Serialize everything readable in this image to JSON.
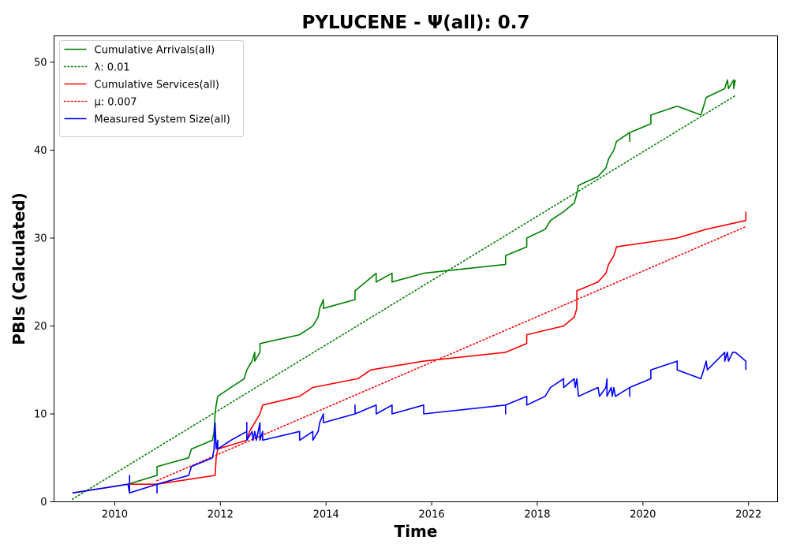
{
  "chart_data": {
    "type": "line",
    "title": "PYLUCENE -  Ψ(all): 0.7",
    "xlabel": "Time",
    "ylabel": "PBIs (Calculated)",
    "xlim": [
      2008.85,
      2022.55
    ],
    "ylim": [
      0,
      53
    ],
    "x_ticks": [
      2010,
      2012,
      2014,
      2016,
      2018,
      2020,
      2022
    ],
    "y_ticks": [
      0,
      10,
      20,
      30,
      40,
      50
    ],
    "grid": false,
    "legend_position": "top-left",
    "series": [
      {
        "name": "Cumulative Arrivals(all)",
        "color": "#008000",
        "style": "solid",
        "points": [
          [
            2009.2,
            1
          ],
          [
            2010.25,
            2
          ],
          [
            2010.8,
            3
          ],
          [
            2010.8,
            4
          ],
          [
            2011.4,
            5
          ],
          [
            2011.45,
            6
          ],
          [
            2011.85,
            7
          ],
          [
            2011.88,
            8
          ],
          [
            2011.9,
            10
          ],
          [
            2011.92,
            11
          ],
          [
            2011.95,
            12
          ],
          [
            2012.2,
            13
          ],
          [
            2012.45,
            14
          ],
          [
            2012.5,
            15
          ],
          [
            2012.6,
            16
          ],
          [
            2012.65,
            17
          ],
          [
            2012.65,
            16
          ],
          [
            2012.75,
            17
          ],
          [
            2012.75,
            18
          ],
          [
            2013.5,
            19
          ],
          [
            2013.75,
            20
          ],
          [
            2013.85,
            21
          ],
          [
            2013.88,
            22
          ],
          [
            2013.95,
            23
          ],
          [
            2013.95,
            22
          ],
          [
            2014.55,
            23
          ],
          [
            2014.55,
            24
          ],
          [
            2014.95,
            26
          ],
          [
            2014.95,
            25
          ],
          [
            2015.25,
            26
          ],
          [
            2015.25,
            25
          ],
          [
            2015.85,
            26
          ],
          [
            2017.4,
            27
          ],
          [
            2017.4,
            28
          ],
          [
            2017.8,
            29
          ],
          [
            2017.8,
            30
          ],
          [
            2018.15,
            31
          ],
          [
            2018.25,
            32
          ],
          [
            2018.5,
            33
          ],
          [
            2018.7,
            34
          ],
          [
            2018.75,
            35
          ],
          [
            2018.78,
            36
          ],
          [
            2019.15,
            37
          ],
          [
            2019.3,
            38
          ],
          [
            2019.35,
            39
          ],
          [
            2019.45,
            40
          ],
          [
            2019.5,
            41
          ],
          [
            2019.75,
            42
          ],
          [
            2019.75,
            41
          ],
          [
            2019.75,
            42
          ],
          [
            2020.15,
            43
          ],
          [
            2020.15,
            44
          ],
          [
            2020.65,
            45
          ],
          [
            2021.1,
            44
          ],
          [
            2021.15,
            45
          ],
          [
            2021.2,
            46
          ],
          [
            2021.55,
            47
          ],
          [
            2021.6,
            48
          ],
          [
            2021.62,
            47
          ],
          [
            2021.72,
            48
          ],
          [
            2021.72,
            47
          ],
          [
            2021.75,
            48
          ]
        ]
      },
      {
        "name": "λ: 0.01",
        "color": "#008000",
        "style": "dotted",
        "points": [
          [
            2009.2,
            0.3
          ],
          [
            2021.75,
            46.2
          ]
        ]
      },
      {
        "name": "Cumulative Services(all)",
        "color": "#ff0000",
        "style": "solid",
        "points": [
          [
            2009.2,
            1
          ],
          [
            2010.25,
            2
          ],
          [
            2010.8,
            2
          ],
          [
            2011.9,
            3
          ],
          [
            2011.92,
            5
          ],
          [
            2011.95,
            6
          ],
          [
            2012.5,
            7
          ],
          [
            2012.55,
            8
          ],
          [
            2012.75,
            10
          ],
          [
            2012.8,
            11
          ],
          [
            2013.5,
            12
          ],
          [
            2013.75,
            13
          ],
          [
            2014.6,
            14
          ],
          [
            2014.85,
            15
          ],
          [
            2015.85,
            16
          ],
          [
            2017.4,
            17
          ],
          [
            2017.8,
            18
          ],
          [
            2017.8,
            19
          ],
          [
            2018.5,
            20
          ],
          [
            2018.7,
            21
          ],
          [
            2018.75,
            22
          ],
          [
            2018.75,
            24
          ],
          [
            2019.15,
            25
          ],
          [
            2019.3,
            26
          ],
          [
            2019.35,
            27
          ],
          [
            2019.45,
            28
          ],
          [
            2019.5,
            29
          ],
          [
            2020.65,
            30
          ],
          [
            2021.2,
            31
          ],
          [
            2021.95,
            32
          ],
          [
            2021.95,
            33
          ]
        ]
      },
      {
        "name": "μ: 0.007",
        "color": "#ff0000",
        "style": "dotted",
        "points": [
          [
            2010.8,
            2.4
          ],
          [
            2021.95,
            31.3
          ]
        ]
      },
      {
        "name": "Measured System Size(all)",
        "color": "#0000ff",
        "style": "solid",
        "points": [
          [
            2009.2,
            1
          ],
          [
            2010.25,
            2
          ],
          [
            2010.28,
            1
          ],
          [
            2010.28,
            3
          ],
          [
            2010.28,
            1
          ],
          [
            2010.8,
            2
          ],
          [
            2010.8,
            1
          ],
          [
            2010.8,
            2
          ],
          [
            2011.4,
            3
          ],
          [
            2011.45,
            4
          ],
          [
            2011.85,
            5
          ],
          [
            2011.88,
            6
          ],
          [
            2011.9,
            9
          ],
          [
            2011.92,
            6
          ],
          [
            2011.95,
            7
          ],
          [
            2011.95,
            6
          ],
          [
            2012.2,
            7
          ],
          [
            2012.5,
            8
          ],
          [
            2012.5,
            9
          ],
          [
            2012.5,
            7
          ],
          [
            2012.6,
            8
          ],
          [
            2012.62,
            7
          ],
          [
            2012.65,
            8
          ],
          [
            2012.68,
            7
          ],
          [
            2012.75,
            9
          ],
          [
            2012.75,
            7
          ],
          [
            2012.8,
            8
          ],
          [
            2012.8,
            7
          ],
          [
            2013.5,
            8
          ],
          [
            2013.5,
            7
          ],
          [
            2013.75,
            8
          ],
          [
            2013.75,
            7
          ],
          [
            2013.85,
            8
          ],
          [
            2013.88,
            9
          ],
          [
            2013.95,
            10
          ],
          [
            2013.95,
            9
          ],
          [
            2014.55,
            10
          ],
          [
            2014.55,
            11
          ],
          [
            2014.55,
            10
          ],
          [
            2014.95,
            11
          ],
          [
            2014.95,
            10
          ],
          [
            2015.25,
            11
          ],
          [
            2015.25,
            10
          ],
          [
            2015.85,
            11
          ],
          [
            2015.85,
            10
          ],
          [
            2017.4,
            11
          ],
          [
            2017.4,
            10
          ],
          [
            2017.4,
            11
          ],
          [
            2017.8,
            12
          ],
          [
            2017.8,
            11
          ],
          [
            2018.15,
            12
          ],
          [
            2018.25,
            13
          ],
          [
            2018.5,
            14
          ],
          [
            2018.5,
            13
          ],
          [
            2018.7,
            14
          ],
          [
            2018.72,
            13
          ],
          [
            2018.75,
            14
          ],
          [
            2018.78,
            12
          ],
          [
            2019.15,
            13
          ],
          [
            2019.18,
            12
          ],
          [
            2019.3,
            13
          ],
          [
            2019.32,
            14
          ],
          [
            2019.32,
            12
          ],
          [
            2019.4,
            13
          ],
          [
            2019.42,
            12
          ],
          [
            2019.45,
            13
          ],
          [
            2019.48,
            12
          ],
          [
            2019.75,
            13
          ],
          [
            2019.75,
            12
          ],
          [
            2019.75,
            13
          ],
          [
            2020.15,
            14
          ],
          [
            2020.15,
            15
          ],
          [
            2020.65,
            16
          ],
          [
            2020.65,
            15
          ],
          [
            2021.1,
            14
          ],
          [
            2021.15,
            15
          ],
          [
            2021.2,
            16
          ],
          [
            2021.22,
            15
          ],
          [
            2021.55,
            17
          ],
          [
            2021.55,
            16
          ],
          [
            2021.6,
            17
          ],
          [
            2021.62,
            16
          ],
          [
            2021.7,
            17
          ],
          [
            2021.75,
            17
          ],
          [
            2021.95,
            16
          ],
          [
            2021.95,
            15
          ]
        ]
      }
    ]
  }
}
